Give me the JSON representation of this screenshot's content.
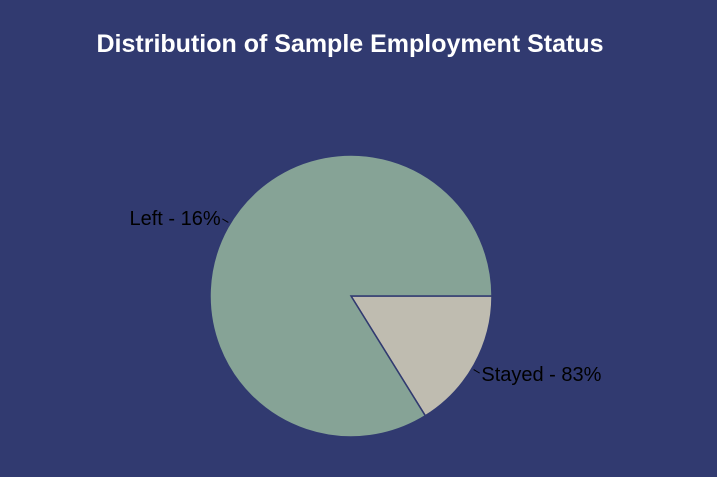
{
  "chart_data": {
    "type": "pie",
    "title": "Distribution of Sample Employment Status",
    "slices": [
      {
        "label": "Left - 16%",
        "name": "Left",
        "value": 16,
        "color": "#bfbcb0"
      },
      {
        "label": "Stayed - 83%",
        "name": "Stayed",
        "value": 83,
        "color": "#86a396"
      }
    ],
    "background_color": "#313a70",
    "edge_color": "#313a70",
    "label_color": "#000000",
    "title_color": "#ffffff"
  }
}
